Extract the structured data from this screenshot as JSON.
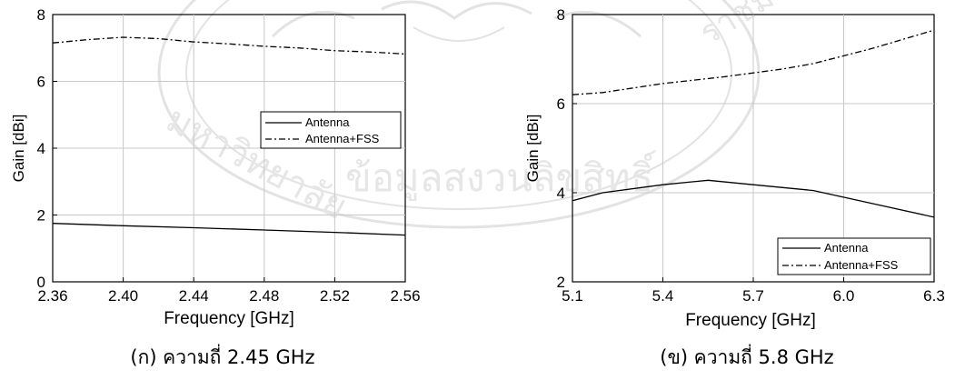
{
  "chart_data": [
    {
      "type": "line",
      "caption": "(ก) ความถี่ 2.45 GHz",
      "xlabel": "Frequency [GHz]",
      "ylabel": "Gain [dBi]",
      "xlim": [
        2.36,
        2.56
      ],
      "ylim": [
        0,
        8
      ],
      "x_ticks": [
        "2.36",
        "2.40",
        "2.44",
        "2.48",
        "2.52",
        "2.56"
      ],
      "y_ticks": [
        "0",
        "2",
        "4",
        "6",
        "8"
      ],
      "grid": true,
      "legend_position": "middle-right",
      "series": [
        {
          "name": "Antenna",
          "line_style": "solid",
          "x": [
            2.36,
            2.4,
            2.44,
            2.48,
            2.52,
            2.56
          ],
          "y": [
            1.75,
            1.68,
            1.62,
            1.55,
            1.48,
            1.4
          ]
        },
        {
          "name": "Antenna+FSS",
          "line_style": "dashdot",
          "x": [
            2.36,
            2.38,
            2.4,
            2.42,
            2.44,
            2.46,
            2.48,
            2.5,
            2.52,
            2.54,
            2.56
          ],
          "y": [
            7.15,
            7.25,
            7.32,
            7.28,
            7.18,
            7.12,
            7.05,
            7.0,
            6.92,
            6.88,
            6.82
          ]
        }
      ]
    },
    {
      "type": "line",
      "caption": "(ข) ความถี่ 5.8 GHz",
      "xlabel": "Frequency [GHz]",
      "ylabel": "Gain [dBi]",
      "xlim": [
        5.1,
        6.3
      ],
      "ylim": [
        2,
        8
      ],
      "x_ticks": [
        "5.1",
        "5.4",
        "5.7",
        "6.0",
        "6.3"
      ],
      "y_ticks": [
        "2",
        "4",
        "6",
        "8"
      ],
      "grid": true,
      "legend_position": "bottom-right",
      "series": [
        {
          "name": "Antenna",
          "line_style": "solid",
          "x": [
            5.1,
            5.2,
            5.4,
            5.55,
            5.7,
            5.9,
            6.1,
            6.3
          ],
          "y": [
            3.82,
            4.0,
            4.18,
            4.28,
            4.18,
            4.05,
            3.75,
            3.45
          ]
        },
        {
          "name": "Antenna+FSS",
          "line_style": "dashdot",
          "x": [
            5.1,
            5.2,
            5.4,
            5.6,
            5.8,
            5.9,
            6.1,
            6.3
          ],
          "y": [
            6.2,
            6.25,
            6.45,
            6.6,
            6.78,
            6.9,
            7.25,
            7.65
          ]
        }
      ]
    }
  ]
}
